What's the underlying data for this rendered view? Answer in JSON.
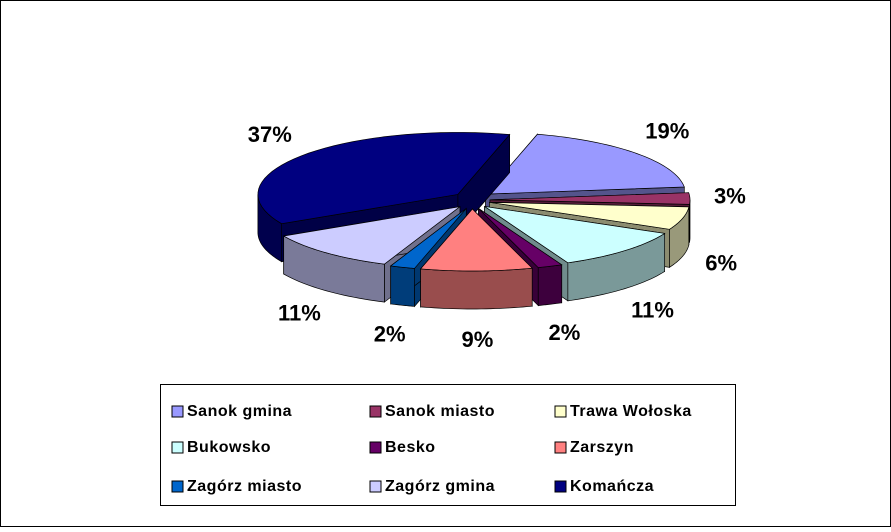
{
  "chart_data": {
    "type": "pie",
    "categories": [
      "Sanok gmina",
      "Sanok miasto",
      "Trawa Wołoska",
      "Bukowsko",
      "Besko",
      "Zarszyn",
      "Zagórz miasto",
      "Zagórz gmina",
      "Komańcza"
    ],
    "values": [
      19,
      3,
      6,
      11,
      2,
      9,
      2,
      11,
      37
    ],
    "value_labels": [
      "19%",
      "3%",
      "6%",
      "11%",
      "2%",
      "9%",
      "2%",
      "11%",
      "37%"
    ],
    "colors": [
      "#9999ff",
      "#993366",
      "#ffffcc",
      "#ccffff",
      "#660066",
      "#ff8080",
      "#0066cc",
      "#ccccff",
      "#000080"
    ],
    "legend": "bottom"
  }
}
